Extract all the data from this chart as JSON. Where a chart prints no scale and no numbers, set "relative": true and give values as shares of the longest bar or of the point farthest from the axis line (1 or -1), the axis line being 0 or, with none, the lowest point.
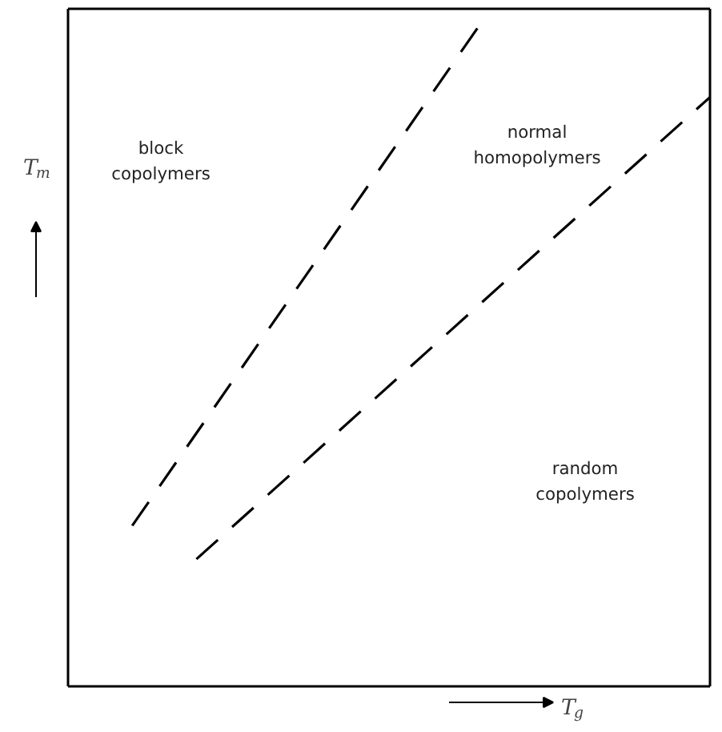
{
  "chart_data": {
    "type": "line",
    "relative": true,
    "xlabel": "T$_{g}$",
    "ylabel": "T$_{m}$",
    "line_style": "dashed",
    "marker": "none",
    "tick_labels": false,
    "categories": [
      null,
      null,
      null,
      null,
      null,
      null,
      null,
      null,
      null,
      null,
      null,
      null,
      null,
      null,
      null,
      null,
      null,
      null,
      null,
      null,
      null
    ],
    "series": [
      {
        "color": "#000000",
        "values": [
          null,
          null,
          0.24,
          null,
          null,
          null,
          null,
          null,
          null,
          null,
          null,
          null,
          null,
          1.0,
          null,
          null,
          null,
          null,
          null,
          null,
          null
        ]
      },
      {
        "color": "#000000",
        "values": [
          null,
          null,
          null,
          null,
          0.19,
          null,
          null,
          null,
          null,
          null,
          null,
          null,
          null,
          null,
          null,
          null,
          null,
          null,
          null,
          null,
          0.88
        ]
      }
    ],
    "annotations": [
      "block\ncopolymers",
      "normal\nhomopolymers",
      "random\ncopolymers"
    ]
  }
}
